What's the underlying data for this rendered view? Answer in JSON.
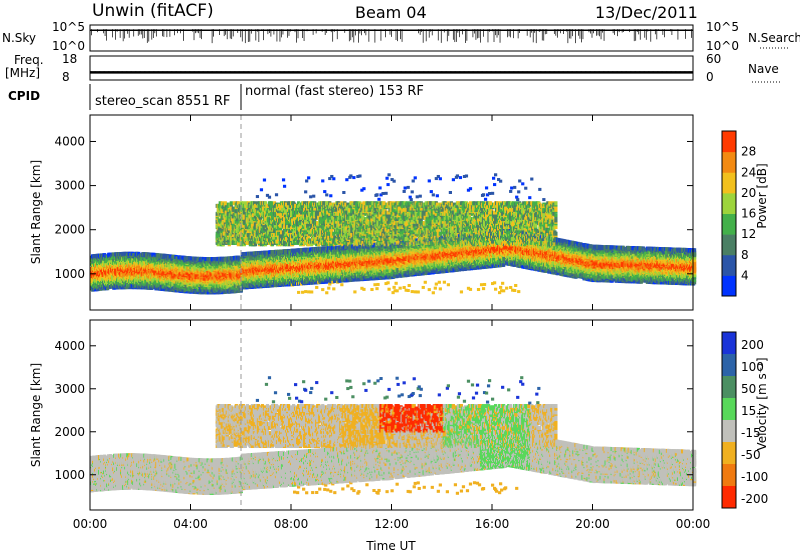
{
  "header": {
    "radar": "Unwin (fitACF)",
    "beam": "Beam 04",
    "date": "13/Dec/2011"
  },
  "chart_data": [
    {
      "type": "line",
      "name": "noise",
      "ylabel_left": "N.Sky",
      "ylabel_right": "N.Search",
      "ticks_left": [
        "10^5",
        "10^0"
      ],
      "ticks_right": [
        "10^5",
        "10^0"
      ],
      "ylim_log10": [
        0,
        5
      ]
    },
    {
      "type": "line",
      "name": "frequency-nave",
      "ylabel_left": "Freq.",
      "ylabel_left_unit": "[MHz]",
      "ylabel_right": "Nave",
      "ticks_left": [
        "18",
        "8"
      ],
      "ticks_right": [
        "60",
        "0"
      ],
      "freq_ylim": [
        8,
        18
      ],
      "nave_ylim": [
        0,
        60
      ],
      "freq_mhz": 11.2,
      "nave": 20
    },
    {
      "type": "table",
      "name": "cpid",
      "label": "CPID",
      "segments": [
        {
          "label": "stereo_scan 8551 RF",
          "start_h": 0,
          "end_h": 6
        },
        {
          "label": "normal (fast stereo) 153 RF",
          "start_h": 6,
          "end_h": 24
        }
      ]
    },
    {
      "type": "heatmap",
      "name": "power",
      "ylabel": "Slant Range [km]",
      "yticks": [
        1000,
        2000,
        3000,
        4000
      ],
      "ylim": [
        180,
        4600
      ],
      "colorbar_label": "Power [dB]",
      "colorbar_ticks": [
        "4",
        "8",
        "12",
        "16",
        "20",
        "24",
        "28"
      ],
      "colorbar_range": [
        0,
        32
      ],
      "colors": [
        "#0033ff",
        "#2b55a8",
        "#4a7f64",
        "#43b04a",
        "#9dd43c",
        "#f2c01d",
        "#f38a12",
        "#ff3a00"
      ]
    },
    {
      "type": "heatmap",
      "name": "velocity",
      "ylabel": "Slant Range [km]",
      "yticks": [
        1000,
        2000,
        3000,
        4000
      ],
      "ylim": [
        180,
        4600
      ],
      "colorbar_label": "Velocity [m s⁻¹]",
      "colorbar_ticks": [
        "200",
        "100",
        "50",
        "15",
        "-15",
        "-50",
        "-100",
        "-200"
      ],
      "colors": [
        "#1a34d8",
        "#2c63a8",
        "#4b8f62",
        "#58d85a",
        "#c0c0bb",
        "#f0b020",
        "#f07a10",
        "#ff2a00"
      ],
      "xlabel": "Time UT",
      "xticks": [
        "00:00",
        "04:00",
        "08:00",
        "12:00",
        "16:00",
        "20:00",
        "00:00"
      ],
      "xlim_h": [
        0,
        24
      ]
    }
  ]
}
